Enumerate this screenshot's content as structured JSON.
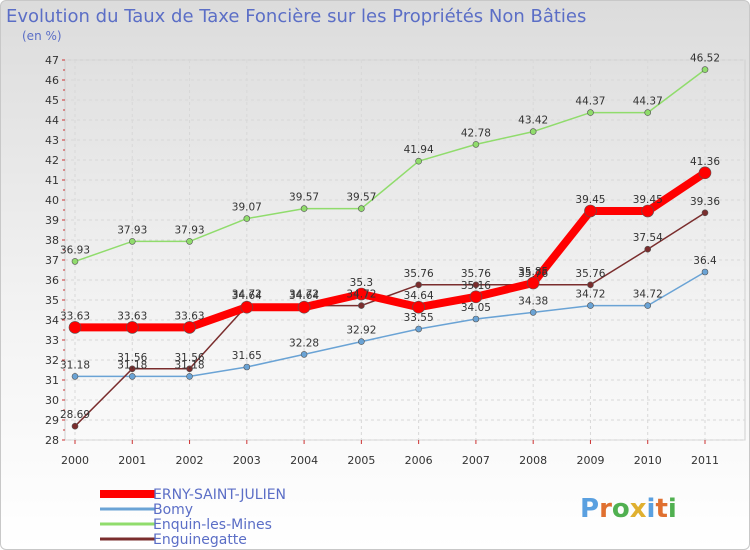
{
  "chart_data": {
    "type": "line",
    "title": "Evolution du Taux de Taxe Foncière sur les Propriétés Non Bâties",
    "subtitle": "(en %)",
    "xlabel": "",
    "ylabel": "",
    "x": [
      "2000",
      "2001",
      "2002",
      "2003",
      "2004",
      "2005",
      "2006",
      "2007",
      "2008",
      "2009",
      "2010",
      "2011"
    ],
    "ylim": [
      28,
      47
    ],
    "yticks": [
      28,
      29,
      30,
      31,
      32,
      33,
      34,
      35,
      36,
      37,
      38,
      39,
      40,
      41,
      42,
      43,
      44,
      45,
      46,
      47
    ],
    "grid": true,
    "legend_position": "bottom-left",
    "series": [
      {
        "name": "ERNY-SAINT-JULIEN",
        "color": "#ff0000",
        "values": [
          33.63,
          33.63,
          33.63,
          34.64,
          34.64,
          35.3,
          34.64,
          35.16,
          35.85,
          39.45,
          39.45,
          41.36
        ],
        "labels": [
          "33.63",
          "33.63",
          "33.63",
          "34.64",
          "34.64",
          "35.3",
          "34.64",
          "35.16",
          "35.85",
          "39.45",
          "39.45",
          "41.36"
        ]
      },
      {
        "name": "Bomy",
        "color": "#6aa3d5",
        "values": [
          31.18,
          31.18,
          31.18,
          31.65,
          32.28,
          32.92,
          33.55,
          34.05,
          34.38,
          34.72,
          34.72,
          36.4
        ],
        "labels": [
          "31.18",
          "31.18",
          "31.18",
          "31.65",
          "32.28",
          "32.92",
          "33.55",
          "34.05",
          "34.38",
          "34.72",
          "34.72",
          "36.4"
        ]
      },
      {
        "name": "Enquin-les-Mines",
        "color": "#90dc6c",
        "values": [
          36.93,
          37.93,
          37.93,
          39.07,
          39.57,
          39.57,
          41.94,
          42.78,
          43.42,
          44.37,
          44.37,
          46.52
        ],
        "labels": [
          "36.93",
          "37.93",
          "37.93",
          "39.07",
          "39.57",
          "39.57",
          "41.94",
          "42.78",
          "43.42",
          "44.37",
          "44.37",
          "46.52"
        ]
      },
      {
        "name": "Enguinegatte",
        "color": "#7a2d2d",
        "values": [
          28.69,
          31.56,
          31.56,
          34.72,
          34.72,
          34.72,
          35.76,
          35.76,
          35.76,
          35.76,
          37.54,
          39.36
        ],
        "labels": [
          "28.69",
          "31.56",
          "31.56",
          "34.72",
          "34.72",
          "34.72",
          "35.76",
          "35.76",
          "35.76",
          "35.76",
          "37.54",
          "39.36"
        ]
      }
    ]
  },
  "brand": {
    "logo_text": "Proxiti"
  }
}
